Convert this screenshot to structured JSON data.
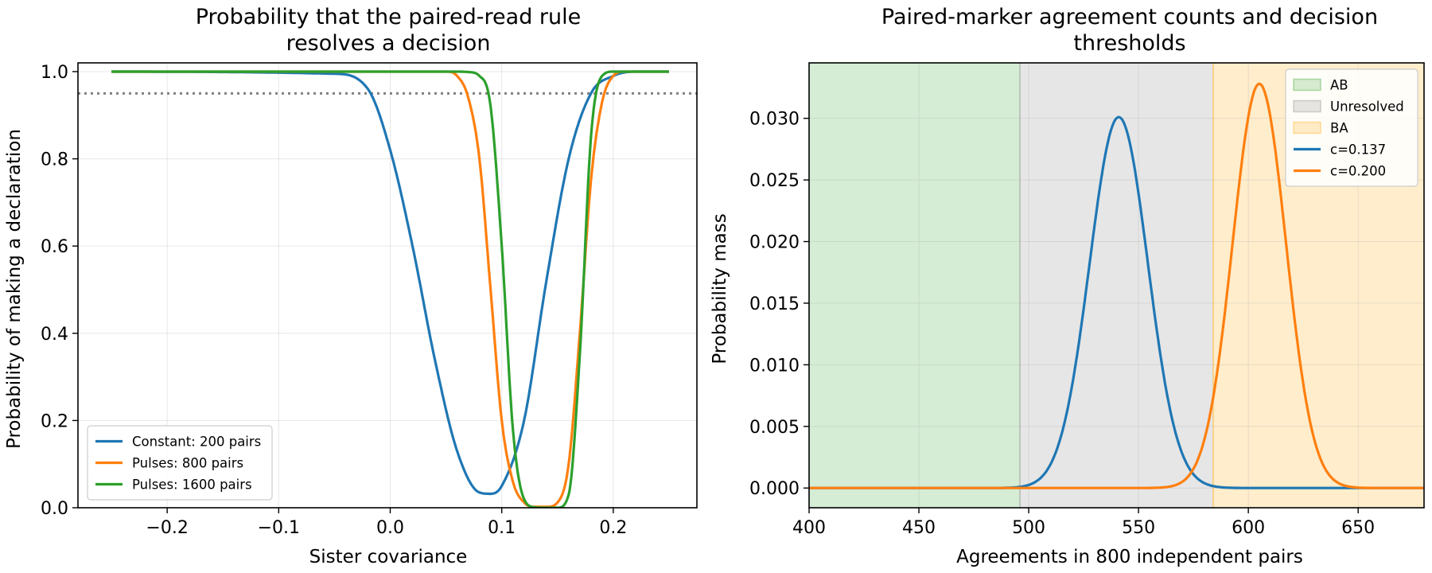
{
  "chart_data": [
    {
      "type": "line",
      "title_lines": [
        "Probability that the paired-read rule",
        "resolves a decision"
      ],
      "xlabel": "Sister covariance",
      "ylabel": "Probability of making a declaration",
      "xlim": [
        -0.28,
        0.275
      ],
      "ylim": [
        0.0,
        1.02
      ],
      "xticks": [
        -0.2,
        -0.1,
        0.0,
        0.1,
        0.2
      ],
      "xtick_labels": [
        "−0.2",
        "−0.1",
        "0.0",
        "0.1",
        "0.2"
      ],
      "yticks": [
        0.0,
        0.2,
        0.4,
        0.6,
        0.8,
        1.0
      ],
      "ytick_labels": [
        "0.0",
        "0.2",
        "0.4",
        "0.6",
        "0.8",
        "1.0"
      ],
      "grid": true,
      "legend_position": "lower-left",
      "reference_line": {
        "y": 0.95,
        "style": "dotted",
        "color": "#808080"
      },
      "series": [
        {
          "name": "Constant: 200 pairs",
          "color": "#1f77b4",
          "x": [
            -0.25,
            -0.05,
            -0.02,
            0.0,
            0.02,
            0.04,
            0.06,
            0.08,
            0.09,
            0.1,
            0.12,
            0.14,
            0.16,
            0.18,
            0.2,
            0.22,
            0.25
          ],
          "y": [
            1.0,
            0.995,
            0.96,
            0.82,
            0.6,
            0.34,
            0.13,
            0.035,
            0.032,
            0.05,
            0.2,
            0.52,
            0.8,
            0.95,
            0.99,
            1.0,
            1.0
          ]
        },
        {
          "name": "Pulses: 800 pairs",
          "color": "#ff7f0e",
          "x": [
            -0.25,
            0.05,
            0.06,
            0.07,
            0.08,
            0.09,
            0.1,
            0.11,
            0.12,
            0.13,
            0.14,
            0.15,
            0.16,
            0.17,
            0.18,
            0.19,
            0.2,
            0.21,
            0.25
          ],
          "y": [
            1.0,
            1.0,
            0.99,
            0.94,
            0.8,
            0.5,
            0.2,
            0.06,
            0.012,
            0.002,
            0.002,
            0.012,
            0.1,
            0.4,
            0.75,
            0.93,
            0.99,
            1.0,
            1.0
          ]
        },
        {
          "name": "Pulses: 1600 pairs",
          "color": "#2ca02c",
          "x": [
            -0.25,
            0.06,
            0.07,
            0.08,
            0.09,
            0.1,
            0.11,
            0.12,
            0.13,
            0.14,
            0.15,
            0.16,
            0.17,
            0.18,
            0.19,
            0.2,
            0.25
          ],
          "y": [
            1.0,
            1.0,
            0.999,
            0.99,
            0.92,
            0.6,
            0.18,
            0.02,
            0.001,
            0.0,
            0.0,
            0.03,
            0.35,
            0.85,
            0.99,
            1.0,
            1.0
          ]
        }
      ]
    },
    {
      "type": "line",
      "title_lines": [
        "Paired-marker agreement counts and decision",
        "thresholds"
      ],
      "xlabel": "Agreements in 800 independent pairs",
      "ylabel": "Probability mass",
      "xlim": [
        400,
        680
      ],
      "ylim": [
        -0.0016,
        0.0345
      ],
      "xticks": [
        400,
        450,
        500,
        550,
        600,
        650
      ],
      "xtick_labels": [
        "400",
        "450",
        "500",
        "550",
        "600",
        "650"
      ],
      "yticks": [
        0.0,
        0.005,
        0.01,
        0.015,
        0.02,
        0.025,
        0.03
      ],
      "ytick_labels": [
        "0.000",
        "0.005",
        "0.010",
        "0.015",
        "0.020",
        "0.025",
        "0.030"
      ],
      "grid": true,
      "legend_position": "top-right",
      "regions": [
        {
          "name": "AB",
          "x_start": 400,
          "x_end": 496,
          "color": "#2ca02c"
        },
        {
          "name": "Unresolved",
          "x_start": 496,
          "x_end": 584,
          "color": "#808080"
        },
        {
          "name": "BA",
          "x_start": 584,
          "x_end": 680,
          "color": "#ffa500"
        }
      ],
      "series": [
        {
          "name": "c=0.137",
          "color": "#1f77b4",
          "distribution": "normal",
          "mean": 541,
          "sd": 13.25,
          "peak": 0.0301,
          "x_range": [
            400,
            680
          ]
        },
        {
          "name": "c=0.200",
          "color": "#ff7f0e",
          "distribution": "normal",
          "mean": 605,
          "sd": 12.15,
          "peak": 0.0328,
          "x_range": [
            400,
            680
          ]
        }
      ]
    }
  ]
}
